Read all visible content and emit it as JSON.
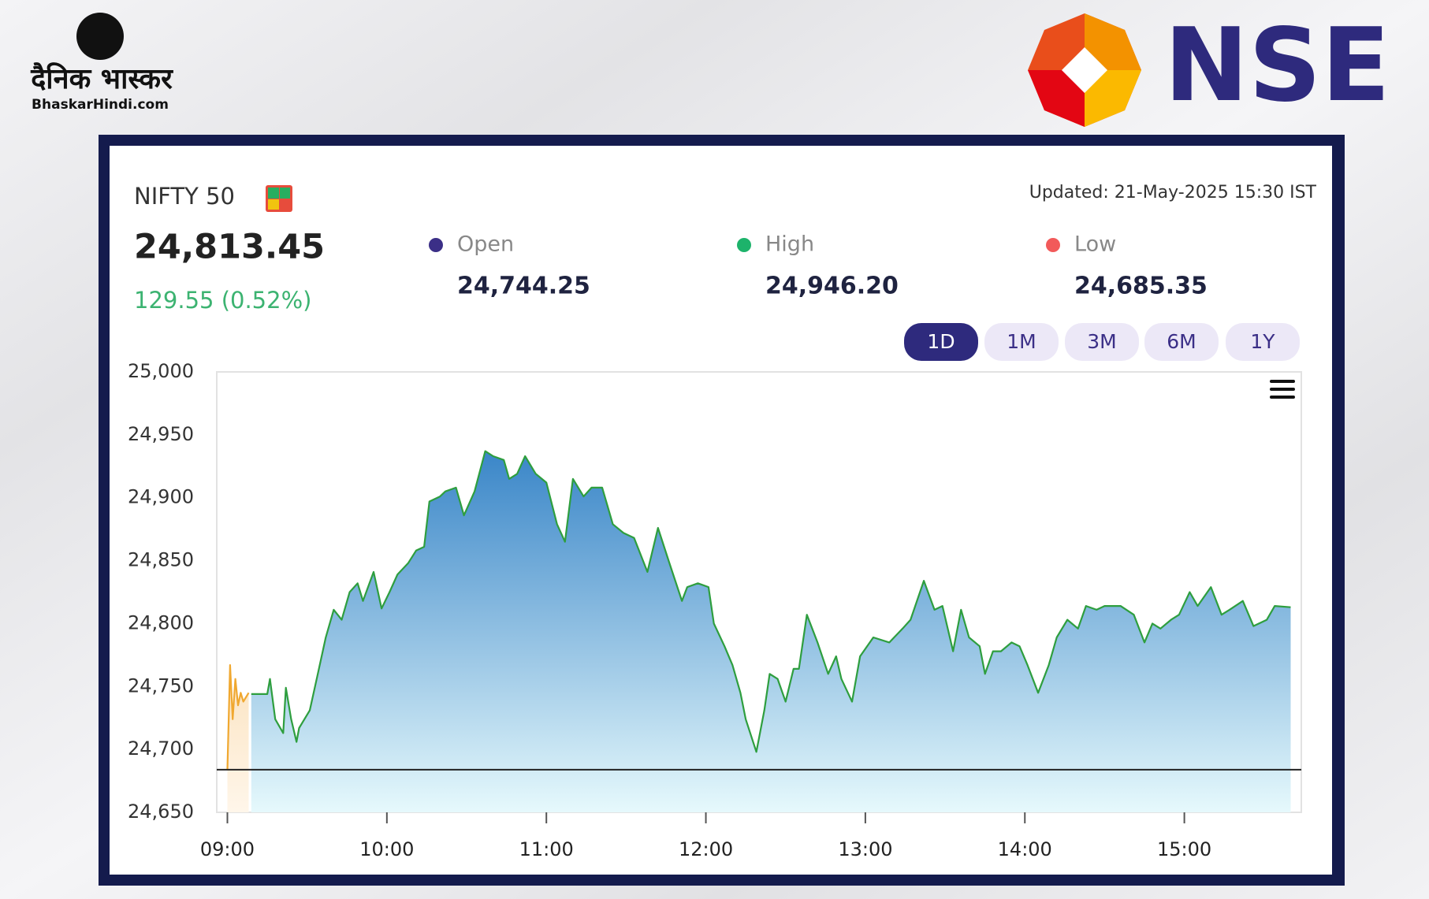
{
  "header": {
    "publisher": "दैनिक भास्कर",
    "publisher_site": "BhaskarHindi.com",
    "exchange": "NSE"
  },
  "quote": {
    "index": "NIFTY 50",
    "price": "24,813.45",
    "change": "129.55 (0.52%)",
    "updated": "Updated: 21-May-2025 15:30 IST",
    "stats": [
      {
        "label": "Open",
        "value": "24,744.25",
        "color": "#3b2f87"
      },
      {
        "label": "High",
        "value": "24,946.20",
        "color": "#1db36b"
      },
      {
        "label": "Low",
        "value": "24,685.35",
        "color": "#f25a5a"
      }
    ]
  },
  "periods": {
    "options": [
      "1D",
      "1M",
      "3M",
      "6M",
      "1Y"
    ],
    "active": 0
  },
  "chart_data": {
    "type": "area",
    "xlim": [
      "08:56",
      "15:44"
    ],
    "xticks": [
      "09:00",
      "10:00",
      "11:00",
      "12:00",
      "13:00",
      "14:00",
      "15:00"
    ],
    "ylim": [
      24650,
      25000
    ],
    "yticks": [
      {
        "value": 24650,
        "label": "24,650"
      },
      {
        "value": 24700,
        "label": "24,700"
      },
      {
        "value": 24750,
        "label": "24,750"
      },
      {
        "value": 24800,
        "label": "24,800"
      },
      {
        "value": 24850,
        "label": "24,850"
      },
      {
        "value": 24900,
        "label": "24,900"
      },
      {
        "value": 24950,
        "label": "24,950"
      },
      {
        "value": 25000,
        "label": "25,000"
      }
    ],
    "grid": false,
    "baseline": 24683.9,
    "series": [
      {
        "color": "#f0a830",
        "fill_top": "#fbe3c0",
        "fill_bottom": "#fff6ea",
        "x": [
          "09:00",
          "09:01",
          "09:02",
          "09:03",
          "09:04",
          "09:05",
          "09:06",
          "09:08"
        ],
        "values": [
          24684,
          24767,
          24724,
          24756,
          24735,
          24745,
          24738,
          24745
        ]
      },
      {
        "color": "#2e9e3e",
        "fill_top": "#3a86c8",
        "fill_bottom": "#e6f9fc",
        "x": [
          "09:09",
          "09:15",
          "09:16",
          "09:18",
          "09:21",
          "09:22",
          "09:24",
          "09:26",
          "09:27",
          "09:31",
          "09:34",
          "09:37",
          "09:40",
          "09:43",
          "09:46",
          "09:49",
          "09:51",
          "09:55",
          "09:58",
          "10:01",
          "10:04",
          "10:08",
          "10:11",
          "10:14",
          "10:16",
          "10:20",
          "10:22",
          "10:26",
          "10:29",
          "10:33",
          "10:37",
          "10:40",
          "10:44",
          "10:46",
          "10:49",
          "10:52",
          "10:56",
          "11:00",
          "11:04",
          "11:07",
          "11:10",
          "11:14",
          "11:17",
          "11:21",
          "11:25",
          "11:29",
          "11:33",
          "11:38",
          "11:42",
          "11:46",
          "11:51",
          "11:53",
          "11:57",
          "12:01",
          "12:03",
          "12:07",
          "12:10",
          "12:13",
          "12:15",
          "12:19",
          "12:22",
          "12:24",
          "12:27",
          "12:30",
          "12:33",
          "12:35",
          "12:38",
          "12:42",
          "12:46",
          "12:49",
          "12:51",
          "12:55",
          "12:58",
          "13:03",
          "13:09",
          "13:14",
          "13:17",
          "13:22",
          "13:26",
          "13:29",
          "13:33",
          "13:36",
          "13:39",
          "13:43",
          "13:45",
          "13:48",
          "13:51",
          "13:55",
          "13:58",
          "14:01",
          "14:05",
          "14:09",
          "14:12",
          "14:16",
          "14:20",
          "14:23",
          "14:27",
          "14:30",
          "14:36",
          "14:41",
          "14:45",
          "14:48",
          "14:51",
          "14:55",
          "14:58",
          "15:02",
          "15:05",
          "15:10",
          "15:14",
          "15:17",
          "15:22",
          "15:26",
          "15:31",
          "15:34",
          "15:40"
        ],
        "values": [
          24744,
          24744,
          24756,
          24724,
          24713,
          24749,
          24724,
          24706,
          24717,
          24731,
          24760,
          24789,
          24811,
          24803,
          24825,
          24832,
          24818,
          24841,
          24812,
          24825,
          24839,
          24848,
          24858,
          24861,
          24897,
          24901,
          24905,
          24908,
          24886,
          24905,
          24937,
          24933,
          24930,
          24915,
          24919,
          24933,
          24919,
          24912,
          24879,
          24865,
          24915,
          24901,
          24908,
          24908,
          24879,
          24872,
          24868,
          24841,
          24876,
          24850,
          24818,
          24829,
          24832,
          24829,
          24800,
          24782,
          24767,
          24745,
          24724,
          24698,
          24731,
          24760,
          24756,
          24738,
          24764,
          24764,
          24807,
          24785,
          24760,
          24774,
          24756,
          24738,
          24774,
          24789,
          24785,
          24796,
          24803,
          24834,
          24811,
          24814,
          24778,
          24811,
          24789,
          24782,
          24760,
          24778,
          24778,
          24785,
          24782,
          24767,
          24745,
          24767,
          24789,
          24803,
          24796,
          24814,
          24811,
          24814,
          24814,
          24807,
          24785,
          24800,
          24796,
          24803,
          24807,
          24825,
          24814,
          24829,
          24807,
          24811,
          24818,
          24798,
          24803,
          24814,
          24813
        ]
      }
    ]
  }
}
